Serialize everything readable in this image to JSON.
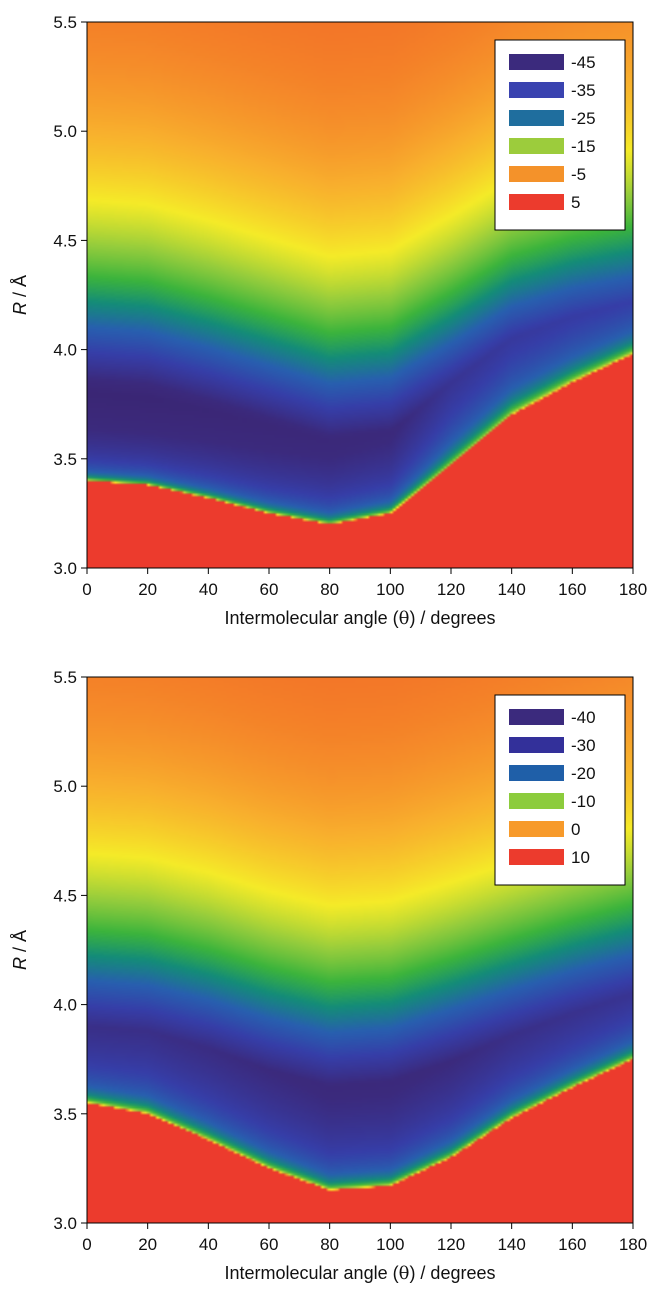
{
  "chart_data": [
    {
      "type": "heatmap",
      "xlabel_prefix": "Intermolecular angle (",
      "xlabel_symbol": "θ",
      "xlabel_suffix": ") / degrees",
      "ylabel_var": "R",
      "ylabel_unit": " / Å",
      "xlim": [
        0,
        180
      ],
      "ylim": [
        3.0,
        5.5
      ],
      "x_ticks": [
        "0",
        "20",
        "40",
        "60",
        "80",
        "100",
        "120",
        "140",
        "160",
        "180"
      ],
      "y_ticks": [
        "3.0",
        "3.5",
        "4.0",
        "4.5",
        "5.0",
        "5.5"
      ],
      "legend_position": "top-right",
      "legend": [
        {
          "label": "-45",
          "color": "#3b2a7d"
        },
        {
          "label": "-35",
          "color": "#3a43b0"
        },
        {
          "label": "-25",
          "color": "#1f6e9e"
        },
        {
          "label": "-15",
          "color": "#9ccc3c"
        },
        {
          "label": "-5",
          "color": "#f4922a"
        },
        {
          "label": "5",
          "color": "#ec3b2d"
        }
      ],
      "grid": false,
      "wall_x": [
        0,
        20,
        40,
        60,
        80,
        100,
        120,
        140,
        160,
        180
      ],
      "wall_y": [
        3.4,
        3.38,
        3.32,
        3.25,
        3.2,
        3.25,
        3.47,
        3.7,
        3.85,
        3.98
      ],
      "min_x": [
        0,
        20,
        40,
        60,
        80,
        100,
        120,
        140,
        160,
        180
      ],
      "min_y": [
        3.8,
        3.78,
        3.72,
        3.65,
        3.58,
        3.62,
        3.85,
        4.05,
        4.15,
        4.22
      ],
      "min_depth": [
        -45,
        -45,
        -44,
        -43,
        -42,
        -41,
        -36,
        -34,
        -33,
        -32
      ]
    },
    {
      "type": "heatmap",
      "xlabel_prefix": "Intermolecular angle (",
      "xlabel_symbol": "θ",
      "xlabel_suffix": ") / degrees",
      "ylabel_var": "R",
      "ylabel_unit": " / Å",
      "xlim": [
        0,
        180
      ],
      "ylim": [
        3.0,
        5.5
      ],
      "x_ticks": [
        "0",
        "20",
        "40",
        "60",
        "80",
        "100",
        "120",
        "140",
        "160",
        "180"
      ],
      "y_ticks": [
        "3.0",
        "3.5",
        "4.0",
        "4.5",
        "5.0",
        "5.5"
      ],
      "legend_position": "top-right",
      "legend": [
        {
          "label": "-40",
          "color": "#3b2a7d"
        },
        {
          "label": "-30",
          "color": "#33309a"
        },
        {
          "label": "-20",
          "color": "#1f5fa8"
        },
        {
          "label": "-10",
          "color": "#8ccc3c"
        },
        {
          "label": "0",
          "color": "#f79a2a"
        },
        {
          "label": "10",
          "color": "#ec3b2d"
        }
      ],
      "grid": false,
      "wall_x": [
        0,
        20,
        40,
        60,
        80,
        100,
        120,
        140,
        160,
        180
      ],
      "wall_y": [
        3.55,
        3.5,
        3.38,
        3.25,
        3.15,
        3.17,
        3.3,
        3.48,
        3.62,
        3.75
      ],
      "min_x": [
        0,
        20,
        40,
        60,
        80,
        100,
        120,
        140,
        160,
        180
      ],
      "min_y": [
        3.9,
        3.88,
        3.8,
        3.7,
        3.62,
        3.64,
        3.74,
        3.86,
        3.96,
        4.05
      ],
      "min_depth": [
        -38,
        -38,
        -39,
        -40,
        -41,
        -41,
        -40,
        -38,
        -37,
        -36
      ]
    }
  ]
}
